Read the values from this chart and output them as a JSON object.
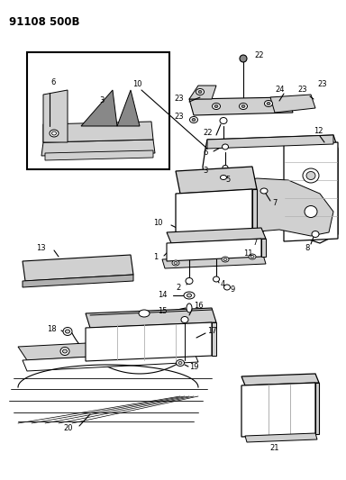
{
  "title": "91108 500B",
  "bg": "#ffffff",
  "lc": "#000000",
  "gray1": "#b0b0b0",
  "gray2": "#d0d0d0",
  "gray3": "#888888",
  "fig_w": 3.84,
  "fig_h": 5.33,
  "dpi": 100
}
